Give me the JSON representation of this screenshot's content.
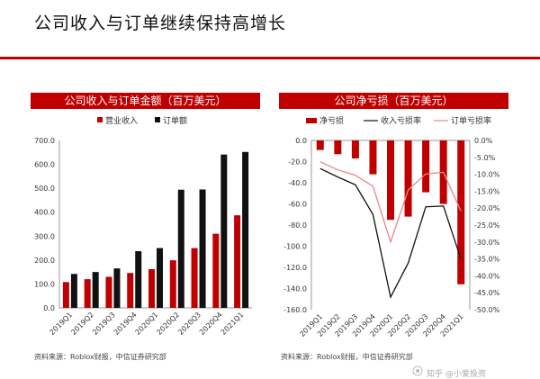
{
  "page": {
    "title": "公司收入与订单继续保持高增长",
    "accent": "#c00000",
    "watermark": "知乎 @小爱投资"
  },
  "chart_data": [
    {
      "type": "bar",
      "title": "公司收入与订单金额（百万美元）",
      "categories": [
        "2019Q1",
        "2019Q2",
        "2019Q3",
        "2019Q4",
        "2020Q1",
        "2020Q2",
        "2020Q3",
        "2020Q4",
        "2021Q1"
      ],
      "series": [
        {
          "name": "营业收入",
          "color": "#c00000",
          "values": [
            108,
            120,
            130,
            146,
            162,
            199,
            250,
            310,
            387
          ]
        },
        {
          "name": "订单额",
          "color": "#111111",
          "values": [
            142,
            150,
            165,
            237,
            250,
            494,
            495,
            641,
            652
          ]
        }
      ],
      "ylim": [
        0,
        700
      ],
      "yticks": [
        "0.0",
        "100.0",
        "200.0",
        "300.0",
        "400.0",
        "500.0",
        "600.0",
        "700.0"
      ],
      "legend": "top",
      "grid": false,
      "source": "资料来源：Roblox财报，中信证券研究部"
    },
    {
      "type": "bar+line",
      "title": "公司净亏损（百万美元）",
      "categories": [
        "2019Q1",
        "2019Q2",
        "2019Q3",
        "2019Q4",
        "2020Q1",
        "2020Q2",
        "2020Q3",
        "2020Q4",
        "2021Q1"
      ],
      "series": [
        {
          "name": "净亏损",
          "color": "#c00000",
          "axis": "left",
          "values": [
            -9,
            -13,
            -17,
            -32,
            -75,
            -72,
            -49,
            -60,
            -136
          ]
        },
        {
          "name": "收入亏损率",
          "color": "#111111",
          "axis": "right",
          "values": [
            -8.3,
            -10.8,
            -13.1,
            -21.9,
            -46.3,
            -36.2,
            -19.6,
            -19.4,
            -35.1
          ]
        },
        {
          "name": "订单亏损率",
          "color": "#e8868a",
          "axis": "right",
          "values": [
            -6.3,
            -8.7,
            -10.3,
            -13.5,
            -30.0,
            -14.6,
            -9.9,
            -9.4,
            -20.9
          ]
        }
      ],
      "ylim_left": [
        -160,
        0
      ],
      "ylim_right": [
        -50,
        0
      ],
      "yticks_left": [
        "0.0",
        "-20.0",
        "-40.0",
        "-60.0",
        "-80.0",
        "-100.0",
        "-120.0",
        "-140.0",
        "-160.0"
      ],
      "yticks_right": [
        "0.0%",
        "-5.0%",
        "-10.0%",
        "-15.0%",
        "-20.0%",
        "-25.0%",
        "-30.0%",
        "-35.0%",
        "-40.0%",
        "-45.0%",
        "-50.0%"
      ],
      "legend": "top",
      "grid": false,
      "source": "资料来源：Roblox财报，中信证券研究部"
    }
  ]
}
